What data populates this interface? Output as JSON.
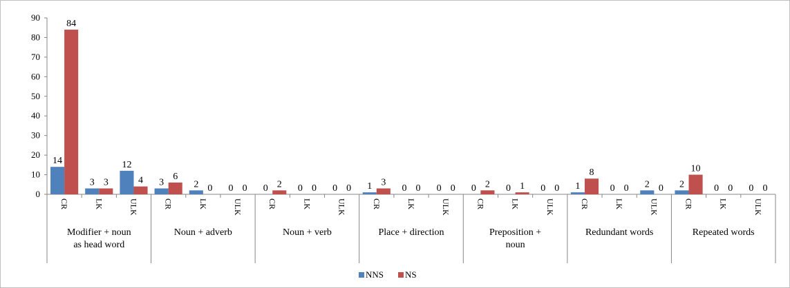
{
  "chart_data": {
    "type": "bar",
    "ylim": [
      0,
      90
    ],
    "yticks": [
      0,
      10,
      20,
      30,
      40,
      50,
      60,
      70,
      80,
      90
    ],
    "grid": false,
    "legend_position": "bottom",
    "groups": [
      {
        "label": [
          "Modifier + noun",
          "as head word"
        ],
        "categories": [
          "CR",
          "LK",
          "ULK"
        ]
      },
      {
        "label": [
          "Noun + adverb"
        ],
        "categories": [
          "CR",
          "LK",
          "ULK"
        ]
      },
      {
        "label": [
          "Noun + verb"
        ],
        "categories": [
          "CR",
          "LK",
          "ULK"
        ]
      },
      {
        "label": [
          "Place + direction"
        ],
        "categories": [
          "CR",
          "LK",
          "ULK"
        ]
      },
      {
        "label": [
          "Preposition +",
          "noun"
        ],
        "categories": [
          "CR",
          "LK",
          "ULK"
        ]
      },
      {
        "label": [
          "Redundant words"
        ],
        "categories": [
          "CR",
          "LK",
          "ULK"
        ]
      },
      {
        "label": [
          "Repeated words"
        ],
        "categories": [
          "CR",
          "LK",
          "ULK"
        ]
      }
    ],
    "series": [
      {
        "name": "NNS",
        "color": "#4f81bd",
        "values": [
          14,
          3,
          12,
          3,
          2,
          0,
          0,
          0,
          0,
          1,
          0,
          0,
          0,
          0,
          0,
          1,
          0,
          2,
          2,
          0,
          0
        ]
      },
      {
        "name": "NS",
        "color": "#c0504d",
        "values": [
          84,
          3,
          4,
          6,
          0,
          0,
          2,
          0,
          0,
          3,
          0,
          0,
          2,
          1,
          0,
          8,
          0,
          0,
          10,
          0,
          0
        ]
      }
    ]
  }
}
